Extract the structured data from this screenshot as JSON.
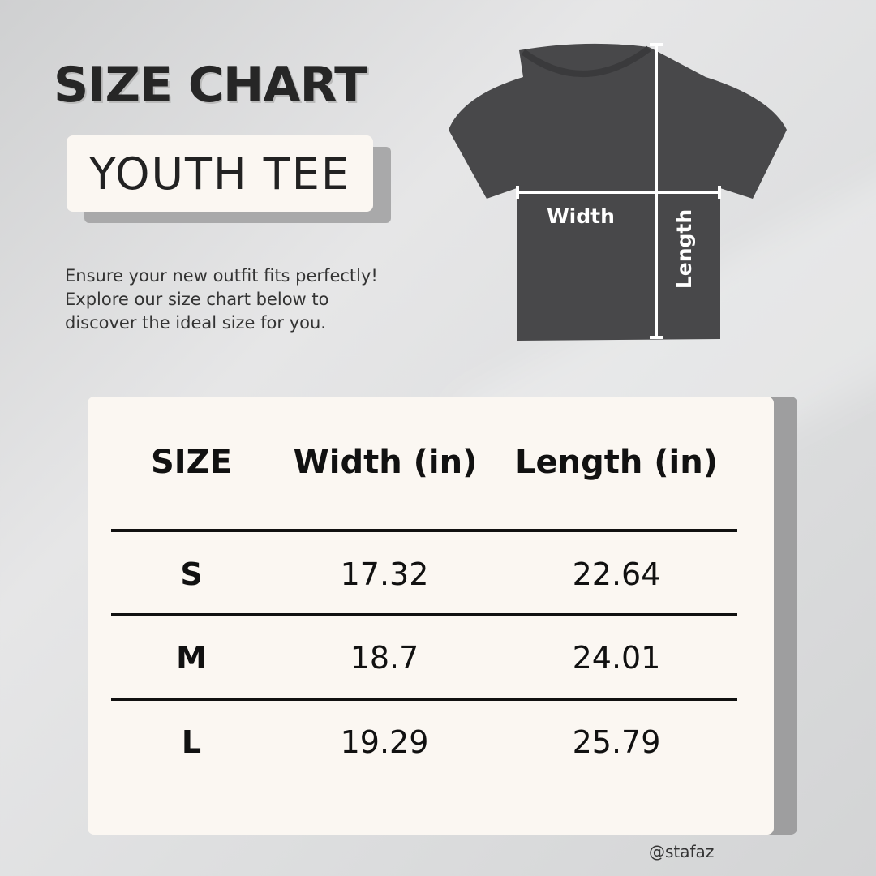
{
  "title": "SIZE CHART",
  "subtitle": "YOUTH TEE",
  "description": [
    "Ensure your new outfit fits perfectly!",
    "Explore our size chart below to",
    "discover the ideal size for you."
  ],
  "tee": {
    "width_label": "Width",
    "length_label": "Length",
    "color": "#48484a"
  },
  "table": {
    "headers": [
      "SIZE",
      "Width (in)",
      "Length (in)"
    ],
    "rows": [
      {
        "size": "S",
        "width": "17.32",
        "length": "22.64"
      },
      {
        "size": "M",
        "width": "18.7",
        "length": "24.01"
      },
      {
        "size": "L",
        "width": "19.29",
        "length": "25.79"
      }
    ]
  },
  "handle": "@stafaz"
}
